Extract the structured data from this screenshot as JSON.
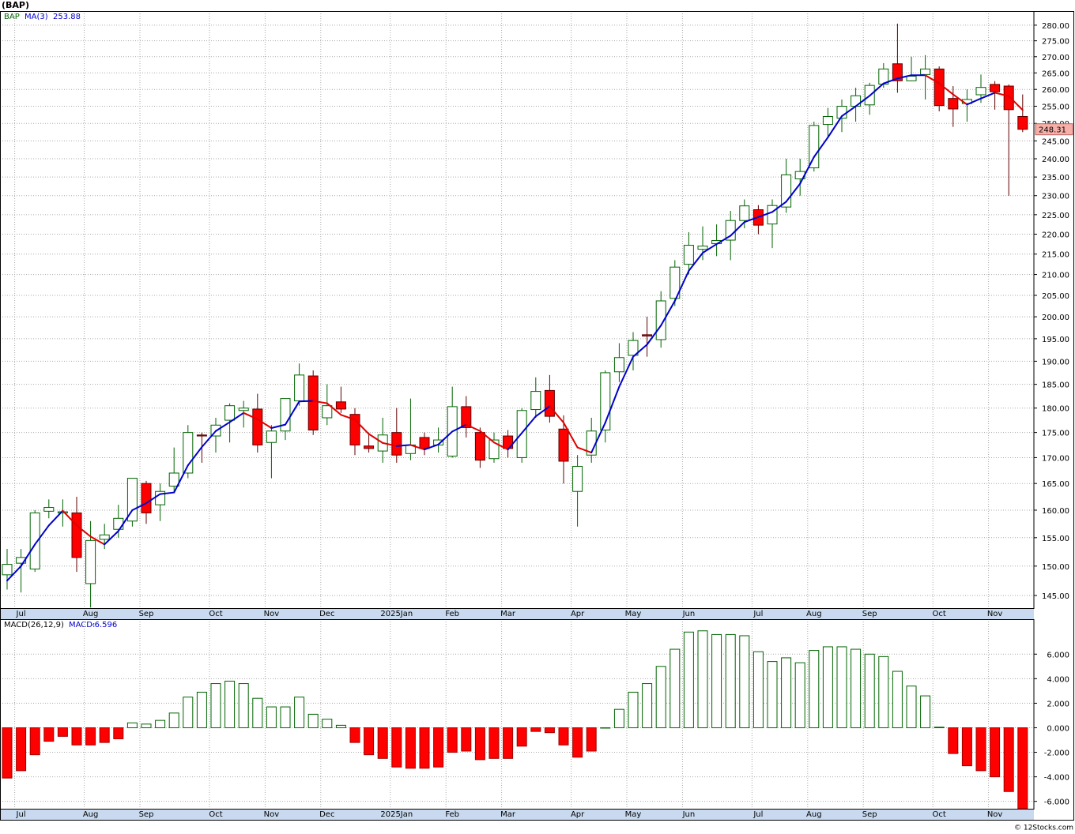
{
  "chart_data": [
    {
      "type": "candlestick",
      "title": "(BAP)",
      "symbol": "BAP",
      "categories": [
        null,
        "Jul",
        null,
        null,
        null,
        null,
        "Aug",
        null,
        null,
        null,
        "Sep",
        null,
        null,
        null,
        null,
        "Oct",
        null,
        null,
        null,
        "Nov",
        null,
        null,
        null,
        "Dec",
        null,
        null,
        null,
        null,
        "2025Jan",
        null,
        null,
        null,
        "Feb",
        null,
        null,
        null,
        "Mar",
        null,
        null,
        null,
        null,
        "Apr",
        null,
        null,
        null,
        "May",
        null,
        null,
        null,
        "Jun",
        null,
        null,
        null,
        null,
        "Jul",
        null,
        null,
        null,
        "Aug",
        null,
        null,
        null,
        "Sep",
        null,
        null,
        null,
        null,
        "Oct",
        null,
        null,
        null,
        "Nov",
        null,
        null
      ],
      "ohlc": [
        [
          148.5,
          153,
          146,
          150.3
        ],
        [
          150.5,
          153,
          145.5,
          151.5
        ],
        [
          149.5,
          160,
          149,
          159.5
        ],
        [
          159.8,
          162,
          158.5,
          160.5
        ],
        [
          159.5,
          162,
          157,
          159.7
        ],
        [
          159.5,
          162.5,
          149,
          151.5
        ],
        [
          147,
          158,
          143,
          154.5
        ],
        [
          154.7,
          157.5,
          153,
          155.5
        ],
        [
          156.5,
          161,
          155,
          158.5
        ],
        [
          158,
          166,
          157,
          166
        ],
        [
          165,
          165.5,
          157.5,
          159.5
        ],
        [
          161,
          165,
          158,
          163.5
        ],
        [
          164.5,
          172,
          163.5,
          167
        ],
        [
          167,
          176.5,
          166,
          175
        ],
        [
          174.5,
          175,
          169,
          174.3
        ],
        [
          174.3,
          178,
          171,
          176.5
        ],
        [
          177.5,
          181,
          173,
          180.5
        ],
        [
          179.5,
          181.5,
          176,
          180
        ],
        [
          179.8,
          183,
          171,
          172.5
        ],
        [
          173,
          176.5,
          166,
          175.3
        ],
        [
          175.3,
          182,
          173.5,
          182
        ],
        [
          181.5,
          189.5,
          180.5,
          187
        ],
        [
          186.8,
          188,
          174.5,
          175.5
        ],
        [
          178,
          185,
          176.5,
          180.5
        ],
        [
          181.3,
          184.5,
          179,
          179.8
        ],
        [
          178.7,
          180,
          170.5,
          172.5
        ],
        [
          172.3,
          175,
          171,
          171.8
        ],
        [
          171.3,
          178,
          169,
          174.5
        ],
        [
          175,
          180,
          169,
          170.5
        ],
        [
          170.8,
          182,
          169.5,
          172.5
        ],
        [
          174,
          175,
          170.5,
          171.8
        ],
        [
          172.5,
          176,
          171,
          173.5
        ],
        [
          170.3,
          184.5,
          170,
          180.3
        ],
        [
          180.3,
          182.5,
          174,
          176
        ],
        [
          175,
          176,
          168,
          169.5
        ],
        [
          169.8,
          175,
          169,
          173.5
        ],
        [
          174.3,
          175.5,
          170,
          171.8
        ],
        [
          170,
          180,
          169,
          179.5
        ],
        [
          179.7,
          186.5,
          178,
          183.5
        ],
        [
          183.7,
          187,
          177,
          178.3
        ],
        [
          175.7,
          178.5,
          165,
          169.3
        ],
        [
          163.5,
          170.5,
          157,
          168.3
        ],
        [
          170.5,
          178,
          169,
          175.3
        ],
        [
          175.5,
          188,
          173,
          187.5
        ],
        [
          187.7,
          194,
          185.5,
          190.8
        ],
        [
          191.3,
          196.5,
          188,
          194.6
        ],
        [
          195.9,
          200,
          191,
          195.6
        ],
        [
          194.8,
          206,
          193,
          203.7
        ],
        [
          204.3,
          213.5,
          202.5,
          211.8
        ],
        [
          212.5,
          220.5,
          210,
          217.2
        ],
        [
          216.2,
          222,
          213.5,
          217
        ],
        [
          217.6,
          222.5,
          214.5,
          218.4
        ],
        [
          218.5,
          226,
          213.5,
          223.5
        ],
        [
          223.5,
          229,
          221.5,
          227.3
        ],
        [
          226.3,
          227.5,
          220,
          222.3
        ],
        [
          222.6,
          229,
          216.5,
          227.4
        ],
        [
          227,
          240,
          225.5,
          235.6
        ],
        [
          234.5,
          240,
          230,
          236.5
        ],
        [
          237.5,
          250.5,
          236.5,
          249.4
        ],
        [
          249.7,
          254.5,
          246,
          252
        ],
        [
          251.5,
          257,
          247.5,
          255
        ],
        [
          255,
          260.5,
          250.5,
          258.1
        ],
        [
          255.4,
          262,
          252.5,
          261.2
        ],
        [
          261.6,
          268,
          260.5,
          266.2
        ],
        [
          267.8,
          280.5,
          259,
          262.6
        ],
        [
          262.6,
          270,
          262.5,
          264
        ],
        [
          264.5,
          270.5,
          257,
          266.2
        ],
        [
          266.2,
          267,
          253.5,
          255.2
        ],
        [
          257.3,
          261,
          249,
          254.2
        ],
        [
          255.8,
          260,
          250.5,
          257
        ],
        [
          258.4,
          264.5,
          256,
          260.6
        ],
        [
          261.5,
          262.5,
          254,
          259.3
        ],
        [
          261,
          261.5,
          230,
          254
        ],
        [
          252,
          258.5,
          247.5,
          248.31
        ]
      ],
      "up_color": "#006400",
      "down_color": "#ff0000",
      "ma": {
        "name": "MA(3)",
        "up_color": "#0000cc",
        "down_color": "#e00000",
        "values": [
          147.5,
          150,
          153.8,
          157.2,
          159.9,
          157.2,
          155.2,
          153.8,
          156.2,
          160,
          161.3,
          163,
          163.3,
          168.5,
          172.1,
          175.3,
          177.1,
          179,
          177.7,
          175.9,
          176.6,
          181.4,
          181.5,
          181,
          178.6,
          177.6,
          174.7,
          172.9,
          172.3,
          172.5,
          171.6,
          172.6,
          175.2,
          176.6,
          175.3,
          173,
          171.6,
          174.9,
          178.3,
          180.4,
          177,
          172,
          171,
          177,
          184.5,
          191,
          193.7,
          198,
          203.7,
          210.9,
          215.3,
          217.5,
          219.6,
          223.1,
          224.4,
          225.7,
          228.4,
          233.2,
          240.5,
          246,
          252.1,
          255,
          258.1,
          261.8,
          263.3,
          264.3,
          264.3,
          261.8,
          258.5,
          255.5,
          257.3,
          259,
          258,
          253.88
        ]
      },
      "ylim": [
        142.9,
        284.6
      ],
      "log_scale": true,
      "grid": true,
      "yticks": [
        {
          "value": 145,
          "label": "145.00"
        },
        {
          "value": 150,
          "label": "150.00"
        },
        {
          "value": 155,
          "label": "155.00"
        },
        {
          "value": 160,
          "label": "160.00"
        },
        {
          "value": 165,
          "label": "165.00"
        },
        {
          "value": 170,
          "label": "170.00"
        },
        {
          "value": 175,
          "label": "175.00"
        },
        {
          "value": 180,
          "label": "180.00"
        },
        {
          "value": 185,
          "label": "185.00"
        },
        {
          "value": 190,
          "label": "190.00"
        },
        {
          "value": 195,
          "label": "195.00"
        },
        {
          "value": 200,
          "label": "200.00"
        },
        {
          "value": 205,
          "label": "205.00"
        },
        {
          "value": 210,
          "label": "210.00"
        },
        {
          "value": 215,
          "label": "215.00"
        },
        {
          "value": 220,
          "label": "220.00"
        },
        {
          "value": 225,
          "label": "225.00"
        },
        {
          "value": 230,
          "label": "230.00"
        },
        {
          "value": 235,
          "label": "235.00"
        },
        {
          "value": 240,
          "label": "240.00"
        },
        {
          "value": 245,
          "label": "245.00"
        },
        {
          "value": 250,
          "label": "250.00"
        },
        {
          "value": 255,
          "label": "255.00"
        },
        {
          "value": 260,
          "label": "260.00"
        },
        {
          "value": 265,
          "label": "265.00"
        },
        {
          "value": 270,
          "label": "270.00"
        },
        {
          "value": 275,
          "label": "275.00"
        },
        {
          "value": 280,
          "label": "280.00"
        }
      ]
    },
    {
      "type": "bar",
      "name": "MACD(26,12,9)",
      "legend_label": "MACD:",
      "categories": [
        null,
        "Jul",
        null,
        null,
        null,
        null,
        "Aug",
        null,
        null,
        null,
        "Sep",
        null,
        null,
        null,
        null,
        "Oct",
        null,
        null,
        null,
        "Nov",
        null,
        null,
        null,
        "Dec",
        null,
        null,
        null,
        null,
        "2025Jan",
        null,
        null,
        null,
        "Feb",
        null,
        null,
        null,
        "Mar",
        null,
        null,
        null,
        null,
        "Apr",
        null,
        null,
        null,
        "May",
        null,
        null,
        null,
        "Jun",
        null,
        null,
        null,
        null,
        "Jul",
        null,
        null,
        null,
        "Aug",
        null,
        null,
        null,
        "Sep",
        null,
        null,
        null,
        null,
        "Oct",
        null,
        null,
        null,
        "Nov",
        null,
        null
      ],
      "values": [
        -4.1,
        -3.5,
        -2.2,
        -1.1,
        -0.7,
        -1.4,
        -1.4,
        -1.2,
        -0.9,
        0.4,
        0.3,
        0.6,
        1.2,
        2.5,
        2.9,
        3.6,
        3.8,
        3.6,
        2.4,
        1.7,
        1.7,
        2.5,
        1.1,
        0.7,
        0.2,
        -1.2,
        -2.2,
        -2.5,
        -3.2,
        -3.3,
        -3.3,
        -3.2,
        -2.0,
        -1.9,
        -2.6,
        -2.5,
        -2.5,
        -1.5,
        -0.3,
        -0.4,
        -1.4,
        -2.4,
        -1.9,
        0.0,
        1.5,
        2.9,
        3.6,
        5.0,
        6.4,
        7.8,
        7.9,
        7.6,
        7.6,
        7.5,
        6.2,
        5.4,
        5.7,
        5.3,
        6.3,
        6.6,
        6.6,
        6.4,
        6.0,
        5.8,
        4.6,
        3.4,
        2.6,
        0.05,
        -2.1,
        -3.1,
        -3.5,
        -4.0,
        -5.2,
        -6.596
      ],
      "pos_color": "#006400",
      "neg_color": "#ff0000",
      "ylim": [
        -6.6,
        8.85
      ],
      "grid": true,
      "yticks": [
        {
          "value": -6,
          "label": "-6.000"
        },
        {
          "value": -4,
          "label": "-4.000"
        },
        {
          "value": -2,
          "label": "-2.000"
        },
        {
          "value": 0,
          "label": "0.000"
        },
        {
          "value": 2,
          "label": "2.000"
        },
        {
          "value": 4,
          "label": "4.000"
        },
        {
          "value": 6,
          "label": "6.000"
        }
      ]
    }
  ],
  "footer": "© 12Stocks.com"
}
